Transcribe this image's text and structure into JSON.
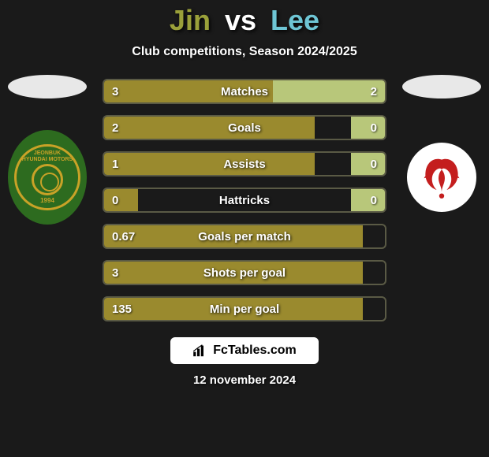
{
  "title": {
    "player1": "Jin",
    "vs": "vs",
    "player2": "Lee",
    "player1_color": "#9aa03a",
    "player2_color": "#6ec5d4"
  },
  "subtitle": "Club competitions, Season 2024/2025",
  "crest1": {
    "top_line1": "JEONBUK",
    "top_line2": "HYUNDAI MOTORS",
    "year": "1994",
    "bg_color": "#2d6b1f",
    "accent_color": "#c9a227"
  },
  "crest2": {
    "bg_color": "#ffffff",
    "bird_color": "#c41e1e"
  },
  "colors": {
    "bar_left": "#9a8a2e",
    "bar_right": "#b8c77a",
    "bar_border": "#5a5a45"
  },
  "stats": [
    {
      "label": "Matches",
      "left_val": "3",
      "right_val": "2",
      "left_pct": 60,
      "right_pct": 40
    },
    {
      "label": "Goals",
      "left_val": "2",
      "right_val": "0",
      "left_pct": 75,
      "right_pct": 12
    },
    {
      "label": "Assists",
      "left_val": "1",
      "right_val": "0",
      "left_pct": 75,
      "right_pct": 12
    },
    {
      "label": "Hattricks",
      "left_val": "0",
      "right_val": "0",
      "left_pct": 12,
      "right_pct": 12
    },
    {
      "label": "Goals per match",
      "left_val": "0.67",
      "right_val": "",
      "left_pct": 92,
      "right_pct": 0
    },
    {
      "label": "Shots per goal",
      "left_val": "3",
      "right_val": "",
      "left_pct": 92,
      "right_pct": 0
    },
    {
      "label": "Min per goal",
      "left_val": "135",
      "right_val": "",
      "left_pct": 92,
      "right_pct": 0
    }
  ],
  "footer": {
    "site": "FcTables.com",
    "date": "12 november 2024"
  }
}
